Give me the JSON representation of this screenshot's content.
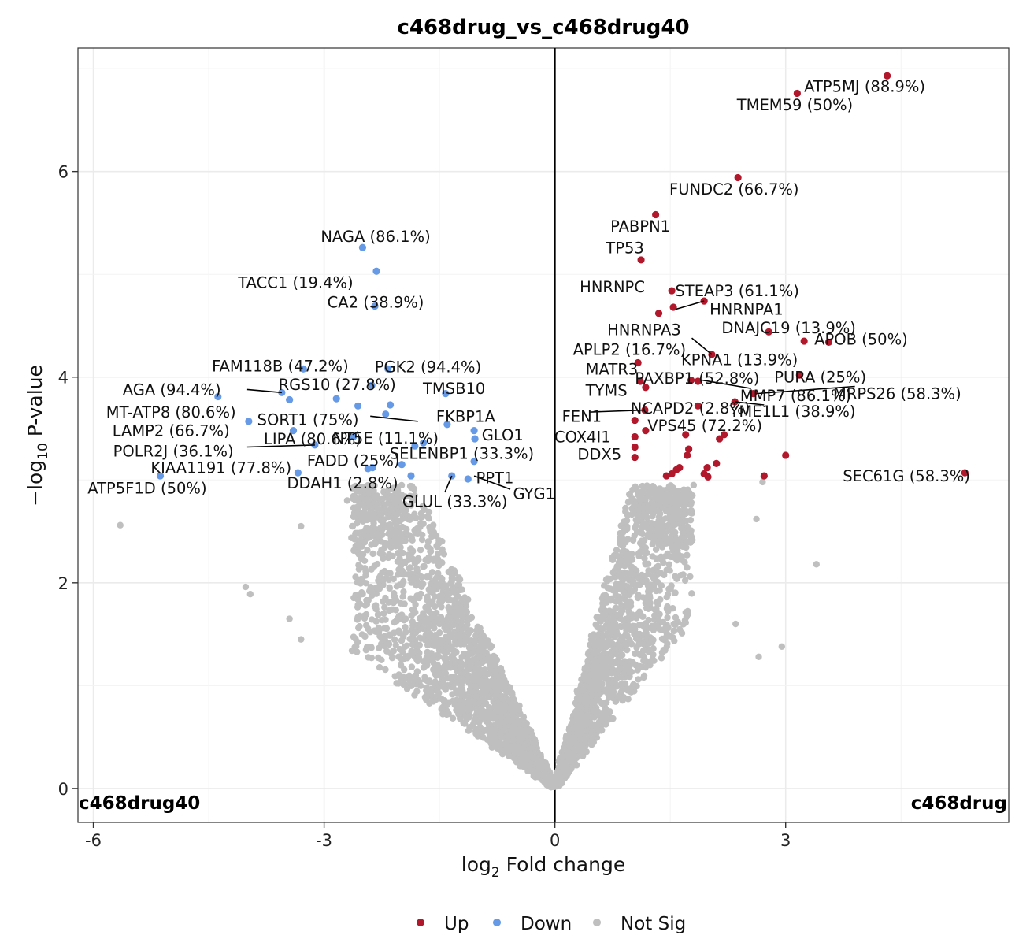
{
  "chart_data": {
    "type": "scatter",
    "title": "c468drug_vs_c468drug40",
    "xlabel": "log2 Fold change",
    "ylabel": "−log10 P-value",
    "xlim": [
      -6.2,
      5.9
    ],
    "ylim": [
      -0.33,
      7.2
    ],
    "xticks": [
      "-6",
      "-3",
      "0",
      "3"
    ],
    "xtick_values": [
      -6,
      -3,
      0,
      3
    ],
    "yticks": [
      "0",
      "2",
      "4",
      "6"
    ],
    "ytick_values": [
      0,
      2,
      4,
      6
    ],
    "grid": true,
    "vline_x": 0,
    "corner_left": "c468drug40",
    "corner_right": "c468drug",
    "colors": {
      "Up": "#b2182b",
      "Down": "#6699e6",
      "Not Sig": "#bfbfbf"
    },
    "legend": {
      "position": "bottom",
      "items": [
        {
          "key": "Up",
          "label": "Up"
        },
        {
          "key": "Down",
          "label": "Down"
        },
        {
          "key": "Not Sig",
          "label": "Not Sig"
        }
      ]
    },
    "up_points": [
      [
        4.32,
        6.93
      ],
      [
        3.15,
        6.76
      ],
      [
        2.38,
        5.94
      ],
      [
        1.31,
        5.58
      ],
      [
        1.12,
        5.14
      ],
      [
        1.52,
        4.84
      ],
      [
        1.54,
        4.68
      ],
      [
        1.94,
        4.74
      ],
      [
        1.35,
        4.62
      ],
      [
        2.78,
        4.44
      ],
      [
        3.24,
        4.35
      ],
      [
        3.56,
        4.34
      ],
      [
        2.04,
        4.22
      ],
      [
        1.08,
        4.14
      ],
      [
        3.18,
        4.02
      ],
      [
        1.77,
        3.97
      ],
      [
        1.86,
        3.96
      ],
      [
        1.11,
        3.96
      ],
      [
        2.58,
        3.84
      ],
      [
        2.34,
        3.76
      ],
      [
        1.86,
        3.72
      ],
      [
        1.18,
        3.9
      ],
      [
        1.17,
        3.68
      ],
      [
        1.04,
        3.58
      ],
      [
        1.18,
        3.48
      ],
      [
        1.7,
        3.44
      ],
      [
        2.14,
        3.4
      ],
      [
        2.2,
        3.44
      ],
      [
        1.04,
        3.42
      ],
      [
        1.74,
        3.3
      ],
      [
        1.72,
        3.24
      ],
      [
        1.04,
        3.32
      ],
      [
        1.04,
        3.22
      ],
      [
        3.0,
        3.24
      ],
      [
        2.1,
        3.16
      ],
      [
        1.98,
        3.12
      ],
      [
        1.58,
        3.1
      ],
      [
        1.62,
        3.12
      ],
      [
        1.52,
        3.06
      ],
      [
        1.45,
        3.04
      ],
      [
        1.94,
        3.06
      ],
      [
        1.99,
        3.03
      ],
      [
        2.72,
        3.04
      ],
      [
        5.33,
        3.07
      ]
    ],
    "down_points": [
      [
        -2.5,
        5.26
      ],
      [
        -2.32,
        5.03
      ],
      [
        -2.34,
        4.69
      ],
      [
        -3.27,
        4.08
      ],
      [
        -2.17,
        4.08
      ],
      [
        -2.38,
        3.92
      ],
      [
        -3.55,
        3.85
      ],
      [
        -3.45,
        3.78
      ],
      [
        -4.38,
        3.81
      ],
      [
        -1.42,
        3.84
      ],
      [
        -2.84,
        3.79
      ],
      [
        -2.56,
        3.72
      ],
      [
        -2.14,
        3.73
      ],
      [
        -2.2,
        3.64
      ],
      [
        -3.98,
        3.57
      ],
      [
        -1.4,
        3.54
      ],
      [
        -1.05,
        3.48
      ],
      [
        -1.04,
        3.4
      ],
      [
        -3.4,
        3.48
      ],
      [
        -2.62,
        3.42
      ],
      [
        -3.12,
        3.34
      ],
      [
        -1.82,
        3.33
      ],
      [
        -1.71,
        3.36
      ],
      [
        -2.43,
        3.11
      ],
      [
        -2.37,
        3.12
      ],
      [
        -1.99,
        3.15
      ],
      [
        -1.05,
        3.18
      ],
      [
        -3.34,
        3.07
      ],
      [
        -5.13,
        3.04
      ],
      [
        -1.87,
        3.04
      ],
      [
        -1.34,
        3.04
      ],
      [
        -1.13,
        3.01
      ]
    ],
    "labels": [
      {
        "text": "ATP5MJ (88.9%)",
        "x": 3.24,
        "y": 6.83,
        "anchor": "start"
      },
      {
        "text": "TMEM59 (50%)",
        "x": 3.12,
        "y": 6.65,
        "anchor": "middle"
      },
      {
        "text": "FUNDC2 (66.7%)",
        "x": 2.33,
        "y": 5.83,
        "anchor": "middle"
      },
      {
        "text": "PABPN1",
        "x": 1.11,
        "y": 5.47,
        "anchor": "middle"
      },
      {
        "text": "TP53",
        "x": 0.91,
        "y": 5.26,
        "anchor": "middle"
      },
      {
        "text": "HNRNPC",
        "x": 1.17,
        "y": 4.88,
        "anchor": "end"
      },
      {
        "text": "STEAP3 (61.1%)",
        "x": 2.37,
        "y": 4.84,
        "anchor": "middle"
      },
      {
        "text": "HNRNPA1",
        "x": 2.49,
        "y": 4.66,
        "anchor": "middle"
      },
      {
        "text": "HNRNPA3",
        "x": 1.16,
        "y": 4.46,
        "anchor": "middle"
      },
      {
        "text": "DNAJC19 (13.9%)",
        "x": 3.04,
        "y": 4.48,
        "anchor": "middle"
      },
      {
        "text": "APLP2 (16.7%)",
        "x": 0.97,
        "y": 4.27,
        "anchor": "middle"
      },
      {
        "text": "APOB (50%)",
        "x": 3.98,
        "y": 4.37,
        "anchor": "middle"
      },
      {
        "text": "KPNA1 (13.9%)",
        "x": 2.4,
        "y": 4.17,
        "anchor": "middle"
      },
      {
        "text": "MATR3",
        "x": 0.74,
        "y": 4.08,
        "anchor": "middle"
      },
      {
        "text": "PAXBP1 (52.8%)",
        "x": 1.85,
        "y": 3.99,
        "anchor": "middle"
      },
      {
        "text": "PURA (25%)",
        "x": 3.45,
        "y": 4.0,
        "anchor": "middle"
      },
      {
        "text": "TYMS",
        "x": 0.67,
        "y": 3.87,
        "anchor": "middle"
      },
      {
        "text": "MMP7 (86.1%)",
        "x": 3.13,
        "y": 3.82,
        "anchor": "middle"
      },
      {
        "text": "MRPS26 (58.3%)",
        "x": 4.45,
        "y": 3.84,
        "anchor": "middle"
      },
      {
        "text": "NCAPD2 (2.8%)",
        "x": 1.76,
        "y": 3.7,
        "anchor": "middle"
      },
      {
        "text": "YME1L1 (38.9%)",
        "x": 3.09,
        "y": 3.67,
        "anchor": "middle"
      },
      {
        "text": "FEN1",
        "x": 0.35,
        "y": 3.62,
        "anchor": "middle"
      },
      {
        "text": "VPS45 (72.2%)",
        "x": 1.95,
        "y": 3.53,
        "anchor": "middle"
      },
      {
        "text": "COX4I1",
        "x": 0.36,
        "y": 3.42,
        "anchor": "middle"
      },
      {
        "text": "DDX5",
        "x": 0.58,
        "y": 3.25,
        "anchor": "middle"
      },
      {
        "text": "SEC61G (58.3%)",
        "x": 4.57,
        "y": 3.04,
        "anchor": "middle"
      },
      {
        "text": "NAGA (86.1%)",
        "x": -2.33,
        "y": 5.37,
        "anchor": "middle"
      },
      {
        "text": "TACC1 (19.4%)",
        "x": -3.37,
        "y": 4.92,
        "anchor": "middle"
      },
      {
        "text": "CA2 (38.9%)",
        "x": -2.33,
        "y": 4.73,
        "anchor": "middle"
      },
      {
        "text": "FAM118B (47.2%)",
        "x": -3.57,
        "y": 4.11,
        "anchor": "middle"
      },
      {
        "text": "PGK2 (94.4%)",
        "x": -1.65,
        "y": 4.1,
        "anchor": "middle"
      },
      {
        "text": "RGS10 (27.8%)",
        "x": -2.83,
        "y": 3.93,
        "anchor": "middle"
      },
      {
        "text": "AGA (94.4%)",
        "x": -4.98,
        "y": 3.88,
        "anchor": "middle"
      },
      {
        "text": "TMSB10",
        "x": -1.31,
        "y": 3.89,
        "anchor": "middle"
      },
      {
        "text": "MT-ATP8 (80.6%)",
        "x": -4.99,
        "y": 3.66,
        "anchor": "middle"
      },
      {
        "text": "SORT1 (75%)",
        "x": -3.21,
        "y": 3.59,
        "anchor": "middle"
      },
      {
        "text": "FKBP1A",
        "x": -1.16,
        "y": 3.62,
        "anchor": "middle"
      },
      {
        "text": "LAMP2 (66.7%)",
        "x": -4.99,
        "y": 3.48,
        "anchor": "middle"
      },
      {
        "text": "GLO1",
        "x": -0.68,
        "y": 3.44,
        "anchor": "middle"
      },
      {
        "text": "NT5E (11.1%)",
        "x": -2.2,
        "y": 3.41,
        "anchor": "middle"
      },
      {
        "text": "LIPA (80.6%)",
        "x": -3.15,
        "y": 3.4,
        "anchor": "middle"
      },
      {
        "text": "POLR2J (36.1%)",
        "x": -4.96,
        "y": 3.28,
        "anchor": "middle"
      },
      {
        "text": "SELENBP1 (33.3%)",
        "x": -1.21,
        "y": 3.26,
        "anchor": "middle"
      },
      {
        "text": "FADD (25%)",
        "x": -2.62,
        "y": 3.19,
        "anchor": "middle"
      },
      {
        "text": "KIAA1191 (77.8%)",
        "x": -4.34,
        "y": 3.12,
        "anchor": "middle"
      },
      {
        "text": "ATP5F1D (50%)",
        "x": -5.3,
        "y": 2.92,
        "anchor": "middle"
      },
      {
        "text": "PPT1",
        "x": -0.78,
        "y": 3.02,
        "anchor": "middle"
      },
      {
        "text": "DDAH1 (2.8%)",
        "x": -2.76,
        "y": 2.97,
        "anchor": "middle"
      },
      {
        "text": "GYG1",
        "x": -0.27,
        "y": 2.87,
        "anchor": "middle"
      },
      {
        "text": "GLUL (33.3%)",
        "x": -1.3,
        "y": 2.79,
        "anchor": "middle"
      }
    ],
    "leader_lines": [
      [
        1.57,
        4.66,
        1.94,
        4.74
      ],
      [
        1.78,
        4.38,
        2.04,
        4.22
      ],
      [
        1.92,
        3.97,
        2.55,
        3.89
      ],
      [
        2.62,
        3.84,
        3.9,
        3.91
      ],
      [
        2.34,
        3.76,
        2.72,
        3.73
      ],
      [
        0.45,
        3.66,
        1.17,
        3.68
      ],
      [
        -4.0,
        3.88,
        -3.55,
        3.85
      ],
      [
        -2.4,
        3.62,
        -1.78,
        3.57
      ],
      [
        -4.0,
        3.32,
        -3.12,
        3.34
      ],
      [
        -2.63,
        3.44,
        -2.56,
        3.47
      ],
      [
        -1.05,
        3.04,
        -0.58,
        2.91
      ],
      [
        -1.43,
        2.88,
        -1.34,
        3.04
      ]
    ]
  }
}
